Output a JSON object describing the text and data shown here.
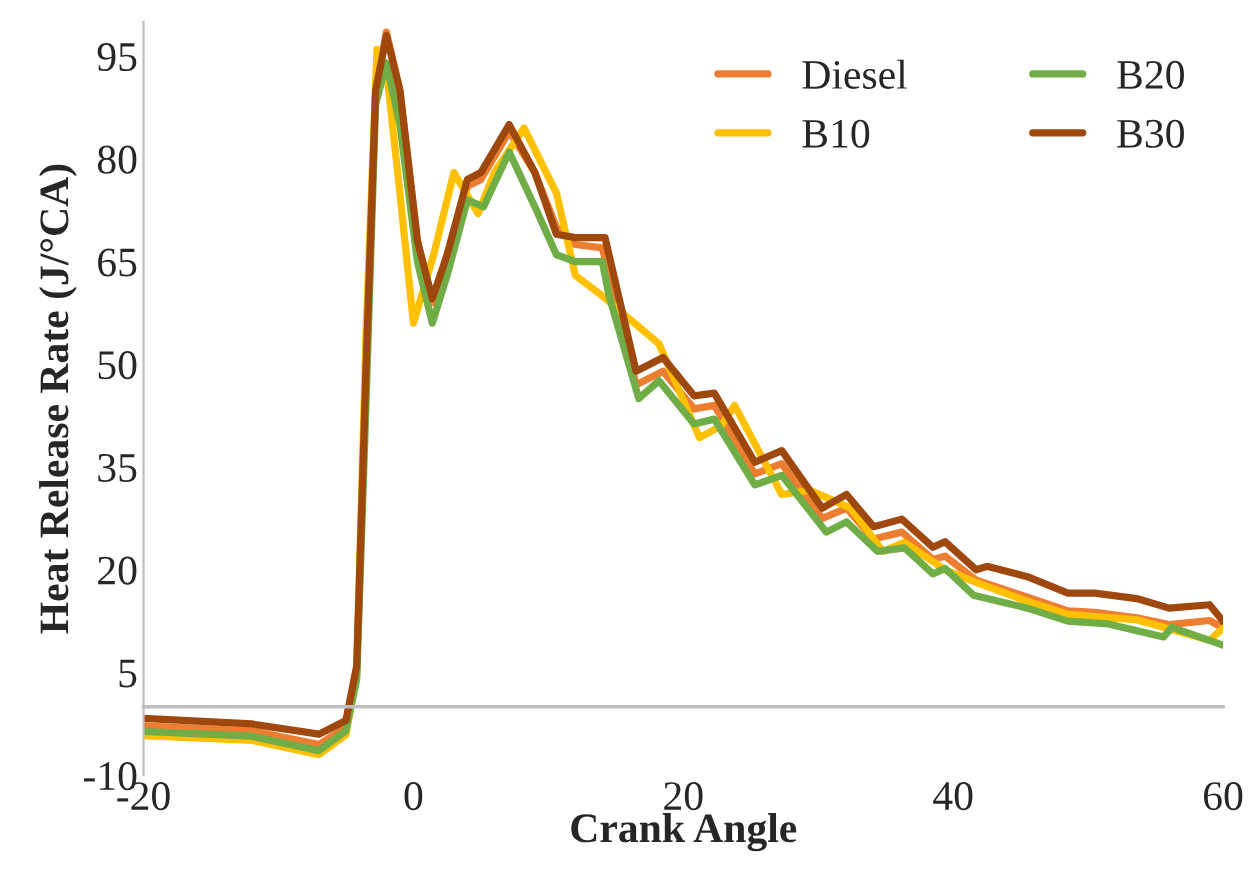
{
  "chart_data": {
    "type": "line",
    "xlabel": "Crank Angle",
    "ylabel": "Heat Release Rate (J/°CA)",
    "xlim": [
      -20,
      60
    ],
    "xticks": [
      -20,
      0,
      20,
      40,
      60
    ],
    "ylim": [
      -10,
      100
    ],
    "yticks": [
      -10,
      5,
      20,
      35,
      50,
      65,
      80,
      95
    ],
    "grid": false,
    "legend": "top right",
    "marker": "none",
    "line_style": "solid",
    "series": [
      {
        "name": "Diesel",
        "color": "#ed7d31",
        "x": [
          -20,
          -12,
          -7,
          -5,
          -4.2,
          -3.5,
          -2.8,
          -2,
          -1,
          0.3,
          1.4,
          2.5,
          4,
          5,
          7.1,
          9,
          10.6,
          12,
          14,
          15.2,
          16.5,
          18.5,
          20.8,
          22.3,
          25.3,
          27.3,
          30.3,
          32.1,
          34.1,
          36.2,
          38.5,
          39.4,
          41.7,
          45.5,
          48.5,
          50.5,
          53.6,
          56,
          59,
          60
        ],
        "values": [
          -2.8,
          -3.5,
          -5.5,
          -3,
          5,
          50,
          90,
          98.5,
          90,
          68,
          59,
          66,
          76,
          77,
          84,
          78,
          70,
          67.5,
          67,
          58,
          47,
          49,
          43.5,
          44,
          34,
          35.5,
          27.5,
          29,
          24.5,
          25.5,
          21.5,
          22,
          18.5,
          16,
          14,
          13.8,
          13,
          12,
          12.6,
          11.5
        ]
      },
      {
        "name": "B10",
        "color": "#ffc000",
        "x": [
          -20,
          -12,
          -7,
          -5,
          -4.2,
          -3.5,
          -2.7,
          -2,
          -1,
          0,
          1.5,
          3,
          4.8,
          6,
          8.2,
          10.6,
          12,
          14,
          15.8,
          18.2,
          21.2,
          22.8,
          23.8,
          27.3,
          29.4,
          32.4,
          34.8,
          36.4,
          39.4,
          41.5,
          45.5,
          48.5,
          53.6,
          59,
          60
        ],
        "values": [
          -4.2,
          -4.9,
          -7,
          -4.1,
          5,
          55,
          96,
          93,
          75,
          56,
          66,
          78,
          72,
          78,
          84.5,
          75,
          63,
          60,
          57,
          53,
          39.3,
          41,
          44,
          31,
          31.6,
          29,
          22.7,
          24,
          20,
          18.3,
          15.4,
          13.5,
          12.7,
          9.7,
          11.5
        ]
      },
      {
        "name": "B20",
        "color": "#70ad47",
        "x": [
          -20,
          -12,
          -7,
          -5,
          -4.2,
          -3.5,
          -2.8,
          -2,
          -1,
          0.3,
          1.4,
          2.5,
          4,
          5.2,
          7.1,
          9,
          10.6,
          12,
          14,
          14.5,
          16.7,
          18.2,
          20.8,
          22.3,
          25.3,
          27.3,
          30.6,
          32.1,
          34.4,
          36.4,
          38.5,
          39.4,
          41.5,
          45.5,
          48.5,
          51.5,
          55.6,
          56.2,
          60
        ],
        "values": [
          -3.6,
          -4.3,
          -6.4,
          -3.5,
          4,
          45,
          88,
          94,
          85,
          65,
          56,
          63,
          74,
          73,
          81,
          73,
          66,
          65,
          65,
          60,
          45,
          47.6,
          41.3,
          42,
          32.4,
          33.8,
          25.5,
          27,
          22.7,
          23.2,
          19.4,
          20.2,
          16.3,
          14.4,
          12.5,
          12.1,
          10.2,
          11.6,
          9
        ]
      },
      {
        "name": "B30",
        "color": "#9e480e",
        "x": [
          -20,
          -12,
          -7,
          -5,
          -4.2,
          -3.5,
          -2.8,
          -2,
          -1,
          0.3,
          1.4,
          2.5,
          4,
          5,
          7.1,
          9,
          10.6,
          12,
          14.2,
          16.5,
          18.5,
          20.8,
          22.3,
          25.3,
          27.3,
          30.3,
          32.1,
          34.1,
          36.2,
          38.5,
          39.4,
          41.7,
          42.5,
          45.5,
          48.5,
          50.5,
          53.6,
          56,
          59,
          60
        ],
        "values": [
          -1.7,
          -2.5,
          -4,
          -2,
          6,
          50,
          90,
          98,
          90,
          68,
          59.6,
          66,
          77,
          78,
          85,
          78,
          69,
          68.5,
          68.5,
          49,
          51,
          45.4,
          45.8,
          35.7,
          37.4,
          29,
          31,
          26.3,
          27.4,
          23.3,
          24.1,
          20,
          20.5,
          19,
          16.6,
          16.6,
          15.8,
          14.4,
          14.9,
          12.5
        ]
      }
    ]
  }
}
